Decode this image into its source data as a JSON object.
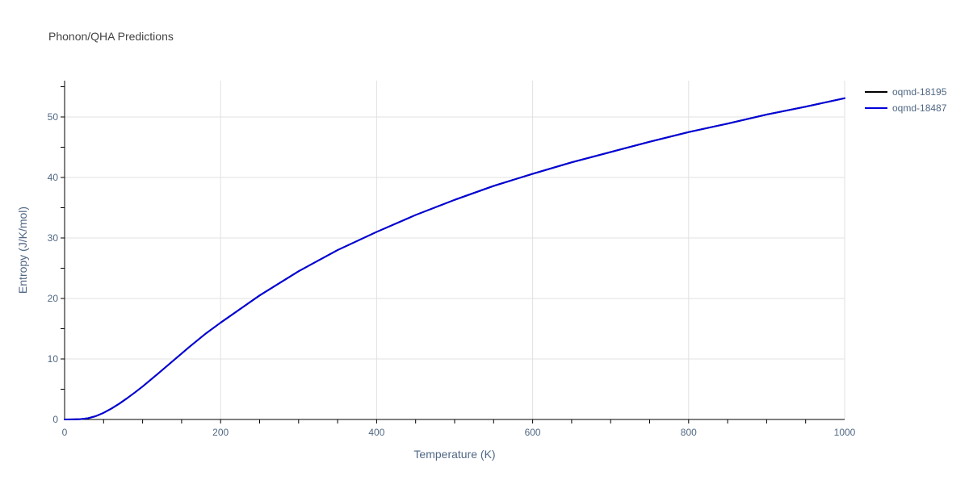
{
  "chart_data": {
    "type": "line",
    "title": "Phonon/QHA Predictions",
    "xlabel": "Temperature (K)",
    "ylabel": "Entropy (J/K/mol)",
    "xlim": [
      0,
      1000
    ],
    "ylim": [
      0,
      56
    ],
    "xticks": [
      0,
      200,
      400,
      600,
      800,
      1000
    ],
    "yticks": [
      0,
      10,
      20,
      30,
      40,
      50
    ],
    "xtick_labels": [
      "0",
      "200",
      "400",
      "600",
      "800",
      "1000"
    ],
    "ytick_labels": [
      "0",
      "10",
      "20",
      "30",
      "40",
      "50"
    ],
    "grid": true,
    "legend_position": "top-right",
    "series": [
      {
        "name": "oqmd-18195",
        "color": "#000000",
        "x": [
          0,
          10,
          20,
          30,
          40,
          50,
          60,
          70,
          80,
          90,
          100,
          120,
          140,
          160,
          180,
          200,
          250,
          300,
          350,
          400,
          450,
          500,
          550,
          600,
          650,
          700,
          750,
          800,
          850,
          900,
          950,
          1000
        ],
        "y": [
          0,
          0.01,
          0.05,
          0.2,
          0.55,
          1.1,
          1.8,
          2.6,
          3.5,
          4.45,
          5.45,
          7.6,
          9.8,
          12.0,
          14.1,
          16.0,
          20.5,
          24.5,
          28.0,
          31.0,
          33.8,
          36.3,
          38.6,
          40.6,
          42.5,
          44.2,
          45.9,
          47.5,
          48.9,
          50.4,
          51.7,
          53.1
        ]
      },
      {
        "name": "oqmd-18487",
        "color": "#0000dd",
        "x": [
          0,
          10,
          20,
          30,
          40,
          50,
          60,
          70,
          80,
          90,
          100,
          120,
          140,
          160,
          180,
          200,
          250,
          300,
          350,
          400,
          450,
          500,
          550,
          600,
          650,
          700,
          750,
          800,
          850,
          900,
          950,
          1000
        ],
        "y": [
          0,
          0.01,
          0.05,
          0.2,
          0.55,
          1.1,
          1.8,
          2.6,
          3.5,
          4.45,
          5.45,
          7.6,
          9.8,
          12.0,
          14.1,
          16.0,
          20.5,
          24.5,
          28.0,
          31.0,
          33.8,
          36.3,
          38.6,
          40.6,
          42.5,
          44.2,
          45.9,
          47.5,
          48.9,
          50.4,
          51.7,
          53.1
        ]
      }
    ]
  }
}
